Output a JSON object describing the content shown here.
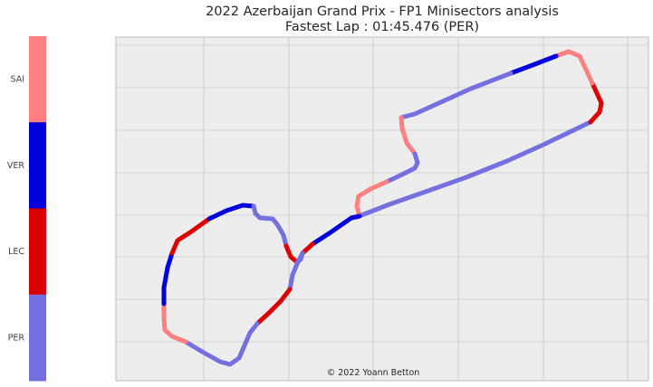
{
  "chart_data": {
    "type": "line",
    "title": "2022 Azerbaijan Grand Prix - FP1 Minisectors analysis",
    "subtitle": "Fastest Lap : 01:45.476 (PER)",
    "watermark": "© 2022 Yoann Betton",
    "grid": true,
    "axes_visible": false,
    "legend": {
      "type": "colorbar",
      "placement": "left",
      "entries": [
        {
          "driver": "SAI",
          "color": "#ff8080"
        },
        {
          "driver": "VER",
          "color": "#0000dd"
        },
        {
          "driver": "LEC",
          "color": "#dd0000"
        },
        {
          "driver": "PER",
          "color": "#7470e0"
        }
      ]
    },
    "colors": {
      "plot_bg": "#ededed",
      "grid": "#c8c8c8"
    },
    "track_segments": [
      {
        "driver": "PER",
        "points": [
          [
            394,
            240
          ],
          [
            430,
            226
          ],
          [
            470,
            212
          ],
          [
            515,
            196
          ],
          [
            560,
            178
          ],
          [
            600,
            160
          ],
          [
            652,
            135
          ]
        ]
      },
      {
        "driver": "LEC",
        "points": [
          [
            652,
            135
          ],
          [
            662,
            124
          ],
          [
            664,
            114
          ],
          [
            654,
            92
          ]
        ]
      },
      {
        "driver": "SAI",
        "points": [
          [
            654,
            92
          ],
          [
            640,
            62
          ],
          [
            628,
            57
          ],
          [
            614,
            62
          ]
        ]
      },
      {
        "driver": "VER",
        "points": [
          [
            614,
            62
          ],
          [
            588,
            72
          ],
          [
            564,
            81
          ]
        ]
      },
      {
        "driver": "PER",
        "points": [
          [
            564,
            81
          ],
          [
            520,
            98
          ],
          [
            458,
            126
          ],
          [
            443,
            130
          ]
        ]
      },
      {
        "driver": "SAI",
        "points": [
          [
            443,
            130
          ],
          [
            444,
            142
          ],
          [
            449,
            158
          ],
          [
            458,
            170
          ]
        ]
      },
      {
        "driver": "PER",
        "points": [
          [
            458,
            170
          ],
          [
            461,
            180
          ],
          [
            458,
            186
          ],
          [
            444,
            193
          ],
          [
            427,
            201
          ]
        ]
      },
      {
        "driver": "SAI",
        "points": [
          [
            427,
            201
          ],
          [
            409,
            209
          ],
          [
            396,
            217
          ],
          [
            394,
            228
          ],
          [
            397,
            239
          ]
        ]
      },
      {
        "driver": "VER",
        "points": [
          [
            397,
            239
          ],
          [
            388,
            241
          ],
          [
            365,
            257
          ],
          [
            345,
            270
          ]
        ]
      },
      {
        "driver": "LEC",
        "points": [
          [
            345,
            270
          ],
          [
            334,
            280
          ]
        ]
      },
      {
        "driver": "PER",
        "points": [
          [
            334,
            280
          ],
          [
            328,
            292
          ],
          [
            323,
            304
          ],
          [
            320,
            320
          ]
        ]
      },
      {
        "driver": "LEC",
        "points": [
          [
            320,
            320
          ],
          [
            310,
            333
          ],
          [
            297,
            346
          ],
          [
            284,
            358
          ]
        ]
      },
      {
        "driver": "PER",
        "points": [
          [
            284,
            358
          ],
          [
            276,
            368
          ],
          [
            270,
            382
          ],
          [
            264,
            396
          ],
          [
            254,
            403
          ],
          [
            243,
            400
          ],
          [
            225,
            390
          ],
          [
            205,
            378
          ]
        ]
      },
      {
        "driver": "SAI",
        "points": [
          [
            205,
            378
          ],
          [
            190,
            372
          ],
          [
            182,
            365
          ],
          [
            181,
            352
          ],
          [
            181,
            336
          ]
        ]
      },
      {
        "driver": "VER",
        "points": [
          [
            181,
            336
          ],
          [
            181,
            318
          ],
          [
            185,
            296
          ],
          [
            190,
            280
          ]
        ]
      },
      {
        "driver": "LEC",
        "points": [
          [
            190,
            280
          ],
          [
            196,
            266
          ],
          [
            210,
            257
          ],
          [
            231,
            242
          ]
        ]
      },
      {
        "driver": "VER",
        "points": [
          [
            231,
            242
          ],
          [
            250,
            233
          ],
          [
            268,
            227
          ],
          [
            280,
            228
          ]
        ]
      },
      {
        "driver": "PER",
        "points": [
          [
            280,
            228
          ],
          [
            282,
            236
          ],
          [
            287,
            241
          ],
          [
            301,
            242
          ],
          [
            306,
            248
          ],
          [
            313,
            260
          ],
          [
            316,
            272
          ]
        ]
      },
      {
        "driver": "LEC",
        "points": [
          [
            316,
            272
          ],
          [
            321,
            284
          ],
          [
            328,
            290
          ]
        ]
      },
      {
        "driver": "PER",
        "points": [
          [
            328,
            290
          ],
          [
            332,
            287
          ],
          [
            334,
            280
          ]
        ]
      }
    ]
  }
}
